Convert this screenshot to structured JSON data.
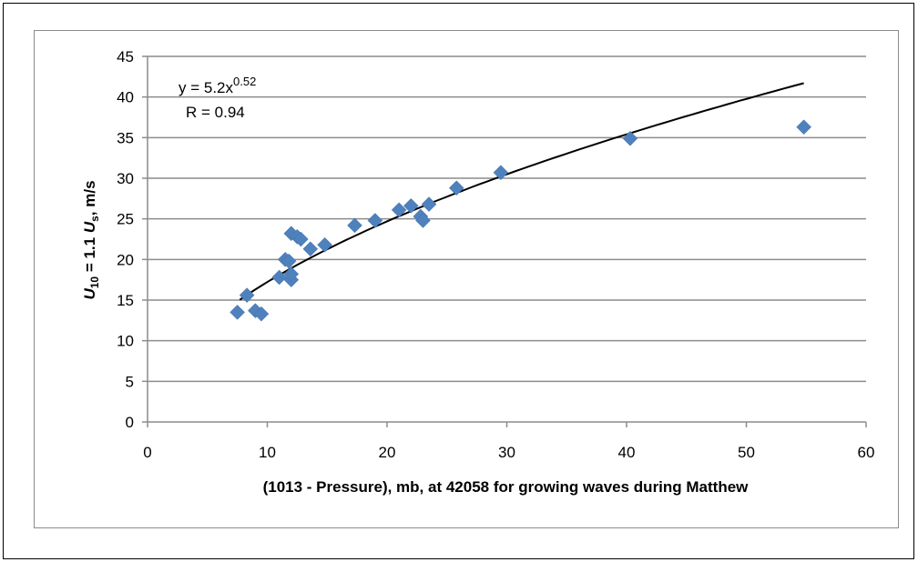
{
  "chart_data": {
    "type": "scatter",
    "title": "",
    "xlabel": "(1013 - Pressure), mb, at 42058 for growing waves during Matthew",
    "ylabel": {
      "prefix": "U",
      "sub1": "10",
      "mid": " = 1.1 ",
      "u2": "U",
      "sub2": "s",
      "suffix": ", m/s"
    },
    "xlim": [
      0,
      60
    ],
    "ylim": [
      0,
      45
    ],
    "x_ticks": [
      "0",
      "10",
      "20",
      "30",
      "40",
      "50",
      "60"
    ],
    "y_ticks": [
      "0",
      "5",
      "10",
      "15",
      "20",
      "25",
      "30",
      "35",
      "40",
      "45"
    ],
    "grid": "horizontal",
    "marker": "diamond",
    "marker_color": "#4f81bd",
    "trendline_color": "#000000",
    "trendline": {
      "type": "power",
      "a": 5.2,
      "b": 0.52,
      "x_range": [
        7.7,
        54.8
      ],
      "equation_prefix": "y = 5.2x",
      "equation_exponent": "0.52",
      "r_label": "R = 0.94"
    },
    "points": [
      {
        "x": 7.5,
        "y": 13.5
      },
      {
        "x": 8.3,
        "y": 15.6
      },
      {
        "x": 9.0,
        "y": 13.7
      },
      {
        "x": 9.5,
        "y": 13.3
      },
      {
        "x": 11.0,
        "y": 17.8
      },
      {
        "x": 11.5,
        "y": 20.0
      },
      {
        "x": 11.8,
        "y": 19.8
      },
      {
        "x": 12.0,
        "y": 17.5
      },
      {
        "x": 12.0,
        "y": 18.2
      },
      {
        "x": 12.0,
        "y": 23.2
      },
      {
        "x": 12.5,
        "y": 22.8
      },
      {
        "x": 12.8,
        "y": 22.5
      },
      {
        "x": 13.6,
        "y": 21.3
      },
      {
        "x": 14.8,
        "y": 21.8
      },
      {
        "x": 17.3,
        "y": 24.2
      },
      {
        "x": 19.0,
        "y": 24.8
      },
      {
        "x": 21.0,
        "y": 26.1
      },
      {
        "x": 22.0,
        "y": 26.6
      },
      {
        "x": 22.8,
        "y": 25.3
      },
      {
        "x": 23.0,
        "y": 24.8
      },
      {
        "x": 23.5,
        "y": 26.8
      },
      {
        "x": 25.8,
        "y": 28.8
      },
      {
        "x": 29.5,
        "y": 30.7
      },
      {
        "x": 40.3,
        "y": 34.9
      },
      {
        "x": 54.8,
        "y": 36.3
      }
    ]
  }
}
